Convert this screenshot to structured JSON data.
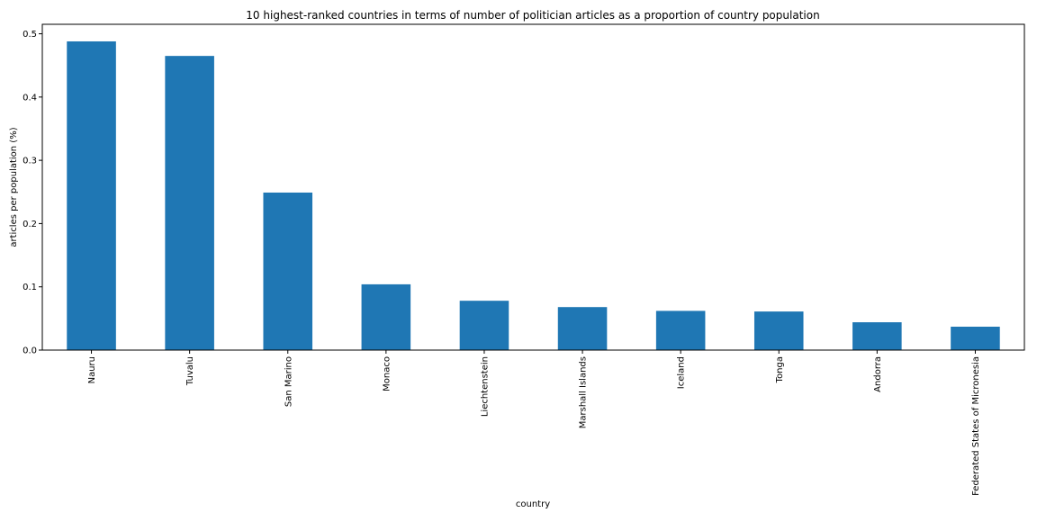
{
  "chart_data": {
    "type": "bar",
    "title": "10 highest-ranked countries in terms of number of politician articles as a proportion of country population",
    "xlabel": "country",
    "ylabel": "articles per population (%)",
    "categories": [
      "Nauru",
      "Tuvalu",
      "San Marino",
      "Monaco",
      "Liechtenstein",
      "Marshall Islands",
      "Iceland",
      "Tonga",
      "Andorra",
      "Federated States of Micronesia"
    ],
    "values": [
      0.488,
      0.465,
      0.249,
      0.104,
      0.078,
      0.068,
      0.062,
      0.061,
      0.044,
      0.037
    ],
    "ylim": [
      0,
      0.515
    ],
    "yticks": [
      0.0,
      0.1,
      0.2,
      0.3,
      0.4,
      0.5
    ],
    "ytick_labels": [
      "0.0",
      "0.1",
      "0.2",
      "0.3",
      "0.4",
      "0.5"
    ],
    "bar_color": "#1f77b4",
    "grid": false,
    "legend": "none"
  }
}
